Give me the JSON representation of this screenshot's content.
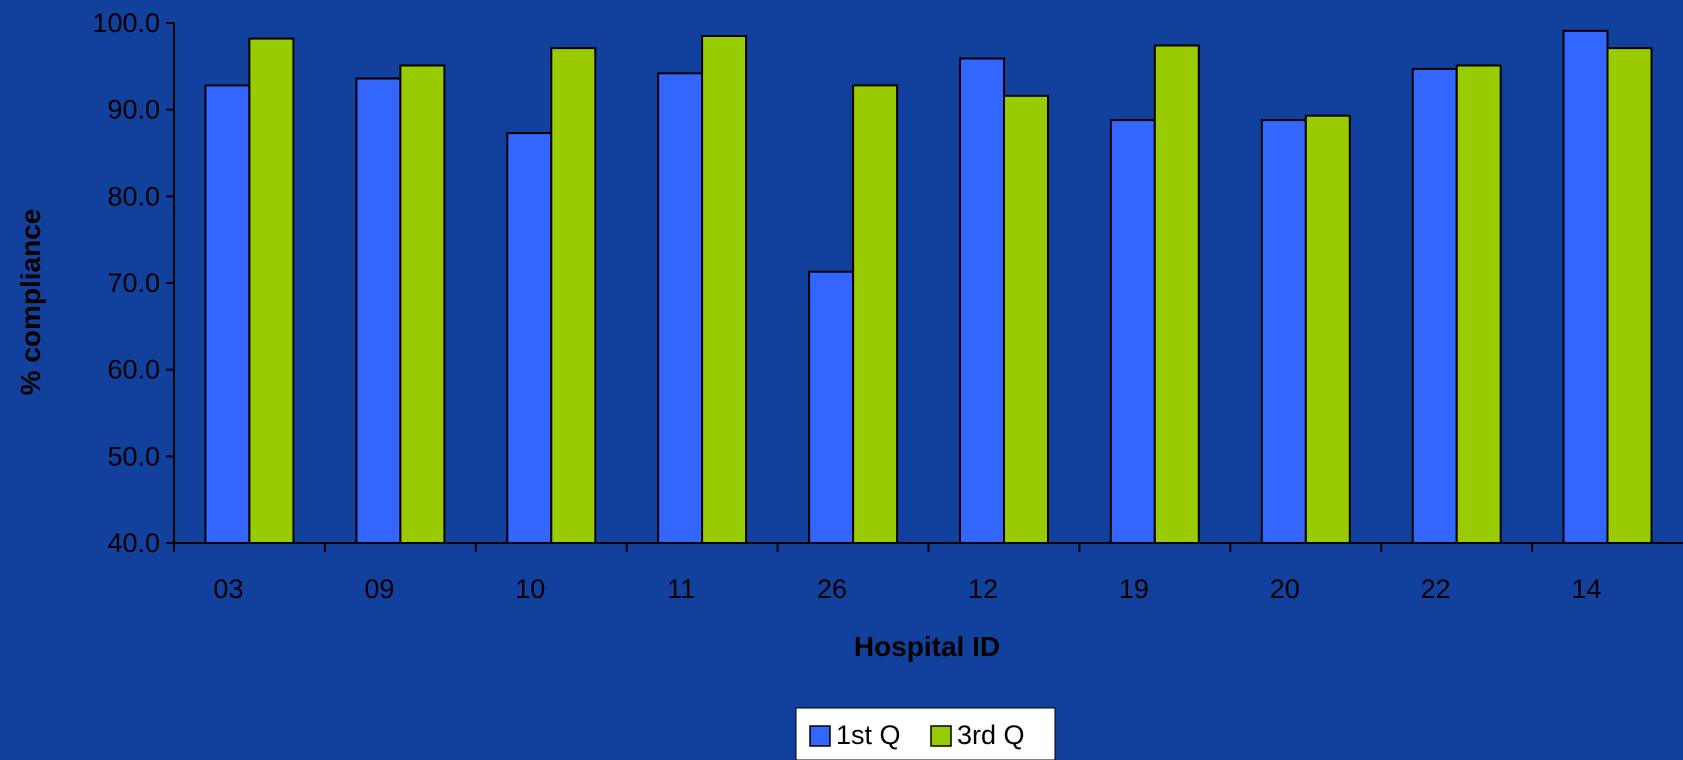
{
  "colors": {
    "background": "#11419C",
    "series_1": "#3366FF",
    "series_2": "#99CC00",
    "axis": "#000000",
    "legend_background": "#FFFFFF"
  },
  "chart_data": {
    "type": "bar",
    "title": "",
    "xlabel": "Hospital ID",
    "ylabel": "% compliance",
    "categories": [
      "03",
      "09",
      "10",
      "11",
      "26",
      "12",
      "19",
      "20",
      "22",
      "14"
    ],
    "ylim": [
      40.0,
      100.0
    ],
    "yticks": [
      "40.0",
      "50.0",
      "60.0",
      "70.0",
      "80.0",
      "90.0",
      "100.0"
    ],
    "grid": false,
    "legend_position": "bottom",
    "series": [
      {
        "name": "1st Q",
        "values": [
          92.8,
          93.6,
          87.3,
          94.2,
          71.3,
          95.9,
          88.8,
          88.8,
          94.7,
          99.1
        ]
      },
      {
        "name": "3rd Q",
        "values": [
          98.2,
          95.1,
          97.1,
          98.5,
          92.8,
          91.6,
          97.4,
          89.3,
          95.1,
          97.1
        ]
      }
    ]
  }
}
